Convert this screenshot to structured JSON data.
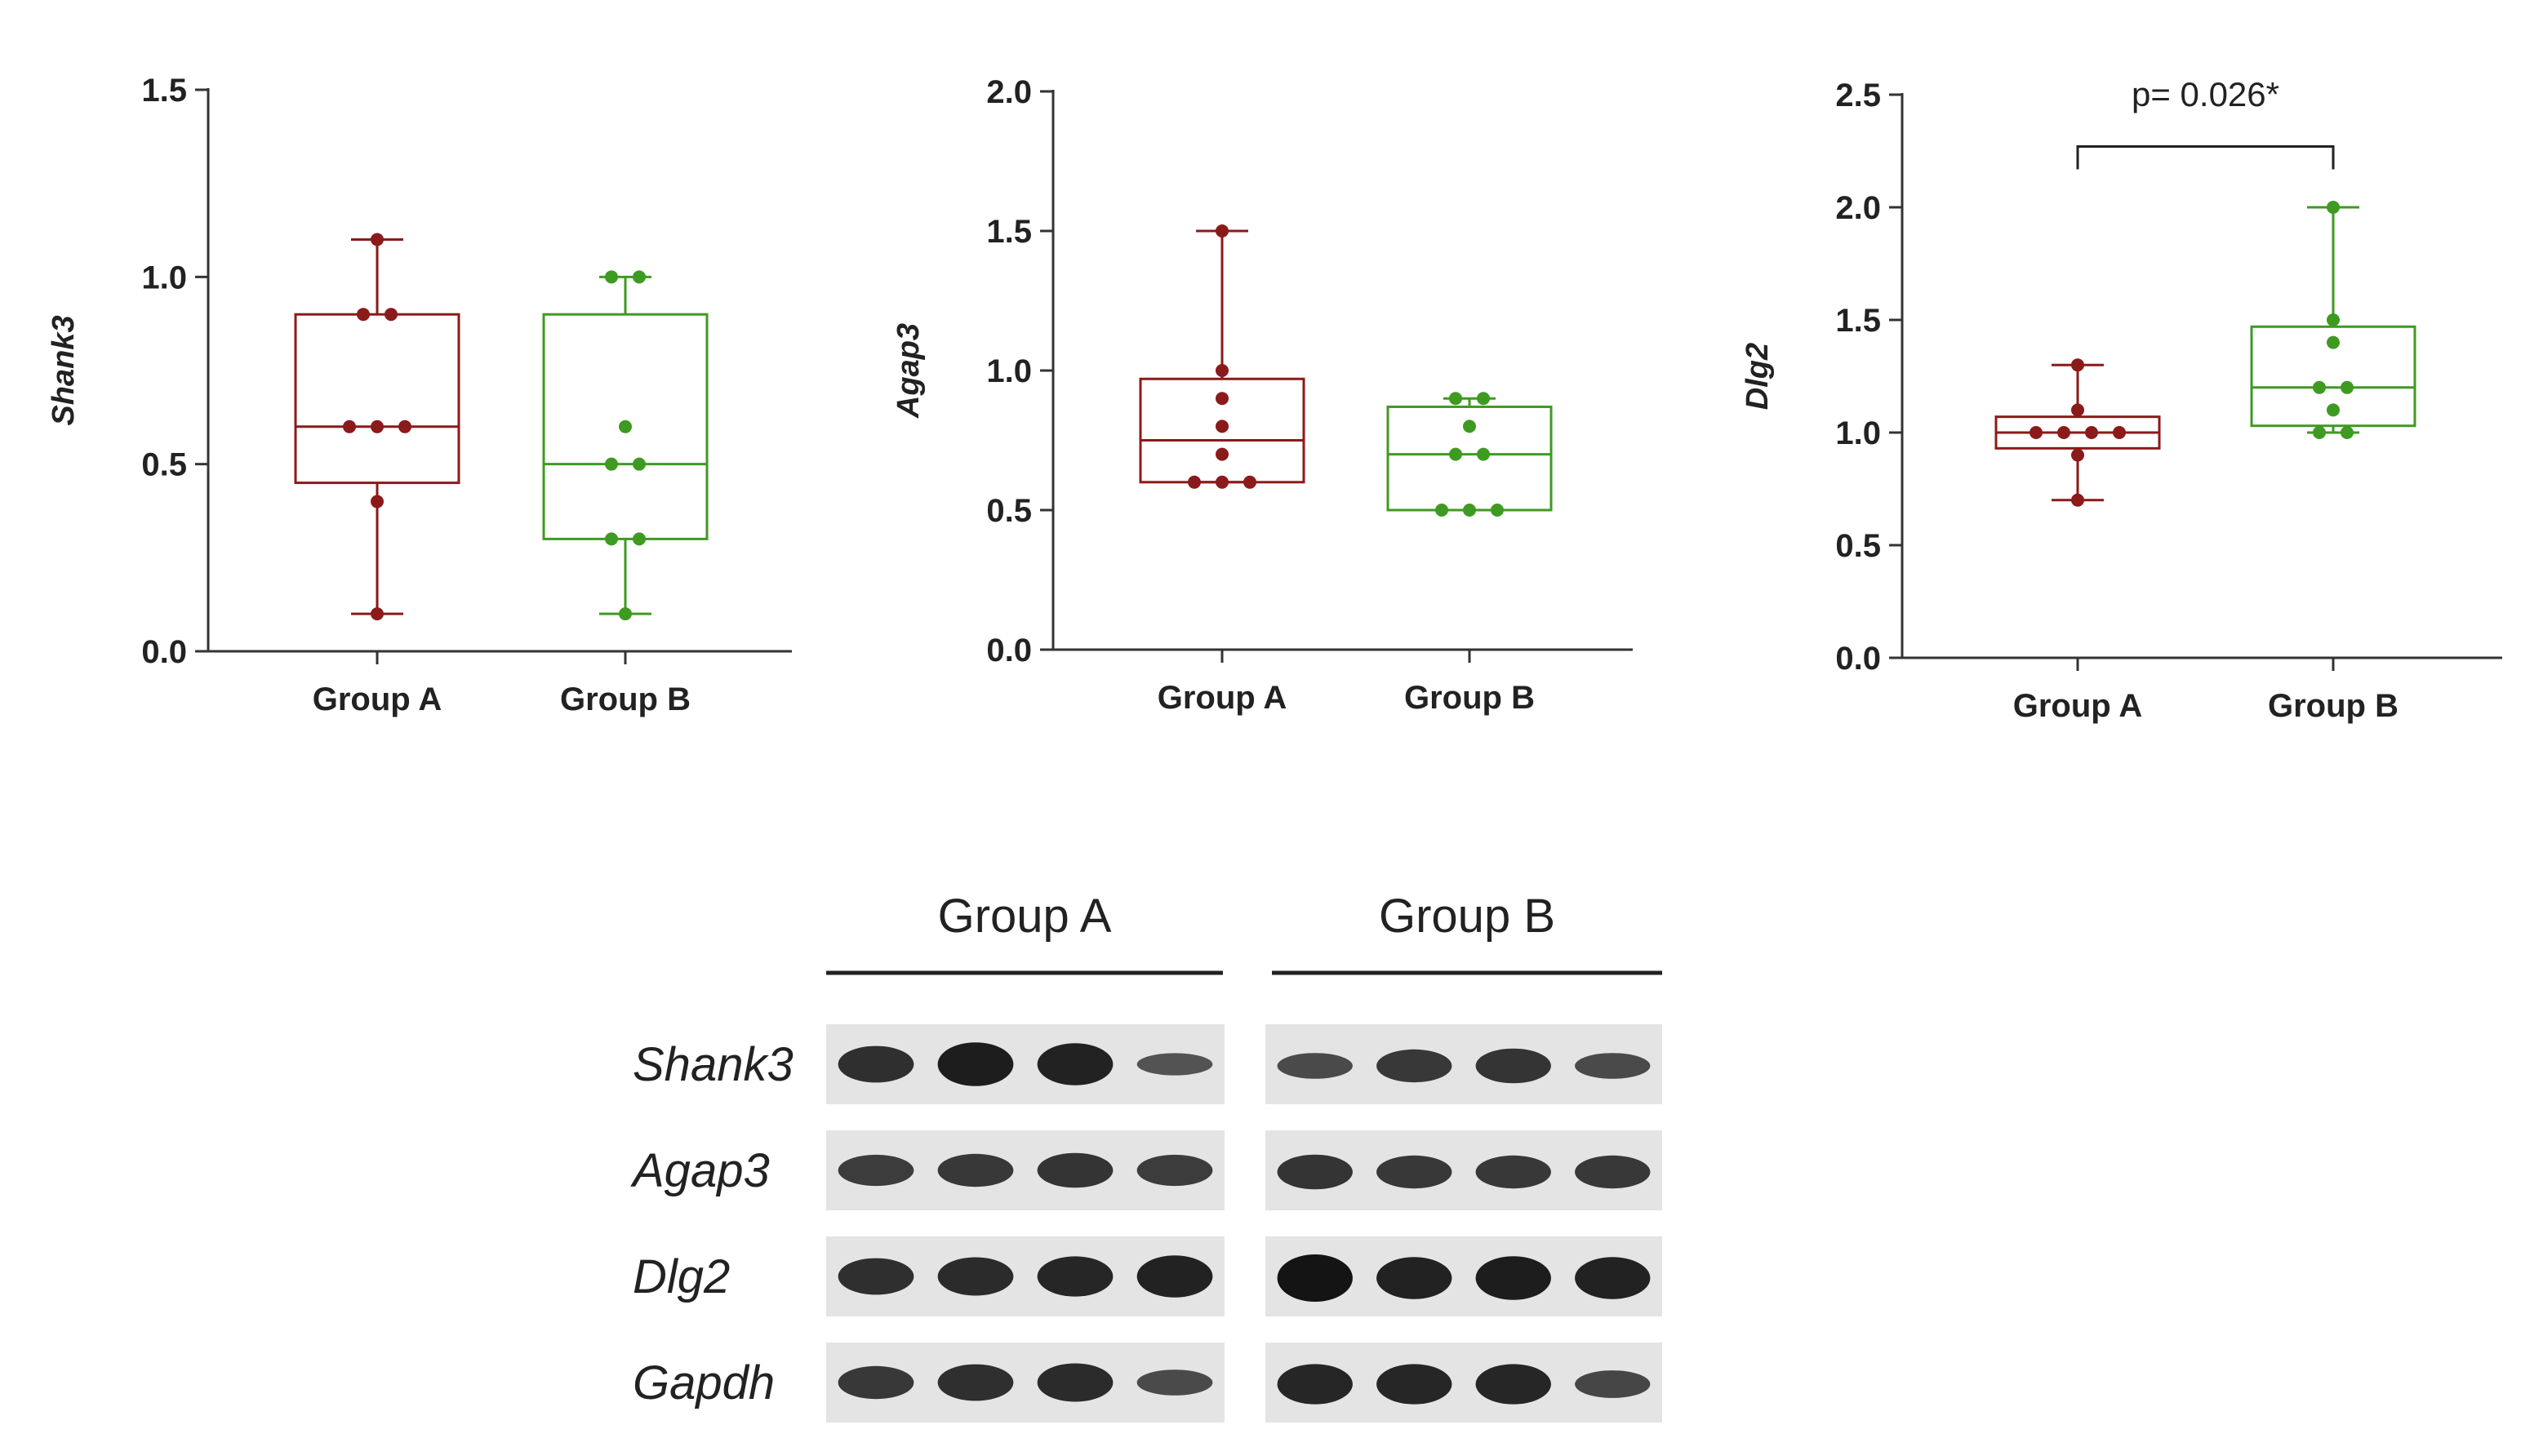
{
  "chart_data": [
    {
      "type": "box",
      "ylabel": "Shank3",
      "ylim": [
        0,
        1.5
      ],
      "yticks": [
        "0.0",
        "0.5",
        "1.0",
        "1.5"
      ],
      "categories": [
        "Group A",
        "Group B"
      ],
      "series": [
        {
          "category": "Group A",
          "color": "#8B1A1A",
          "box": {
            "min": 0.1,
            "q1": 0.45,
            "median": 0.6,
            "q3": 0.9,
            "max": 1.1
          },
          "points": [
            1.1,
            0.9,
            0.9,
            0.6,
            0.6,
            0.6,
            0.4,
            0.1
          ]
        },
        {
          "category": "Group B",
          "color": "#3F9A22",
          "box": {
            "min": 0.1,
            "q1": 0.3,
            "median": 0.5,
            "q3": 0.9,
            "max": 1.0
          },
          "points": [
            1.0,
            1.0,
            0.6,
            0.5,
            0.5,
            0.3,
            0.3,
            0.1
          ]
        }
      ]
    },
    {
      "type": "box",
      "ylabel": "Agap3",
      "ylim": [
        0,
        2.0
      ],
      "yticks": [
        "0.0",
        "0.5",
        "1.0",
        "1.5",
        "2.0"
      ],
      "categories": [
        "Group A",
        "Group B"
      ],
      "series": [
        {
          "category": "Group A",
          "color": "#8B1A1A",
          "box": {
            "min": 0.6,
            "q1": 0.6,
            "median": 0.75,
            "q3": 0.97,
            "max": 1.5
          },
          "points": [
            1.5,
            1.0,
            0.9,
            0.8,
            0.7,
            0.6,
            0.6,
            0.6
          ]
        },
        {
          "category": "Group B",
          "color": "#3F9A22",
          "box": {
            "min": 0.5,
            "q1": 0.5,
            "median": 0.7,
            "q3": 0.87,
            "max": 0.9
          },
          "points": [
            0.9,
            0.9,
            0.8,
            0.7,
            0.7,
            0.5,
            0.5,
            0.5
          ]
        }
      ]
    },
    {
      "type": "box",
      "ylabel": "Dlg2",
      "ylim": [
        0,
        2.5
      ],
      "yticks": [
        "0.0",
        "0.5",
        "1.0",
        "1.5",
        "2.0",
        "2.5"
      ],
      "categories": [
        "Group A",
        "Group B"
      ],
      "annotation": "p= 0.026*",
      "series": [
        {
          "category": "Group A",
          "color": "#8B1A1A",
          "box": {
            "min": 0.7,
            "q1": 0.93,
            "median": 1.0,
            "q3": 1.07,
            "max": 1.3
          },
          "points": [
            1.3,
            1.1,
            1.0,
            1.0,
            1.0,
            1.0,
            0.9,
            0.7
          ]
        },
        {
          "category": "Group B",
          "color": "#3F9A22",
          "box": {
            "min": 1.0,
            "q1": 1.03,
            "median": 1.2,
            "q3": 1.47,
            "max": 2.0
          },
          "points": [
            2.0,
            1.5,
            1.4,
            1.2,
            1.2,
            1.1,
            1.0,
            1.0
          ]
        }
      ]
    }
  ],
  "blot": {
    "groups": [
      "Group A",
      "Group B"
    ],
    "rows": [
      {
        "label": "Shank3",
        "lanes": [
          [
            0.7,
            0.9,
            0.85,
            0.3
          ],
          [
            0.4,
            0.6,
            0.65,
            0.4
          ]
        ]
      },
      {
        "label": "Agap3",
        "lanes": [
          [
            0.55,
            0.6,
            0.65,
            0.55
          ],
          [
            0.65,
            0.6,
            0.6,
            0.6
          ]
        ]
      },
      {
        "label": "Dlg2",
        "lanes": [
          [
            0.7,
            0.75,
            0.8,
            0.85
          ],
          [
            1.0,
            0.85,
            0.9,
            0.85
          ]
        ]
      },
      {
        "label": "Gapdh",
        "lanes": [
          [
            0.6,
            0.7,
            0.75,
            0.4
          ],
          [
            0.8,
            0.8,
            0.8,
            0.45
          ]
        ]
      }
    ]
  }
}
